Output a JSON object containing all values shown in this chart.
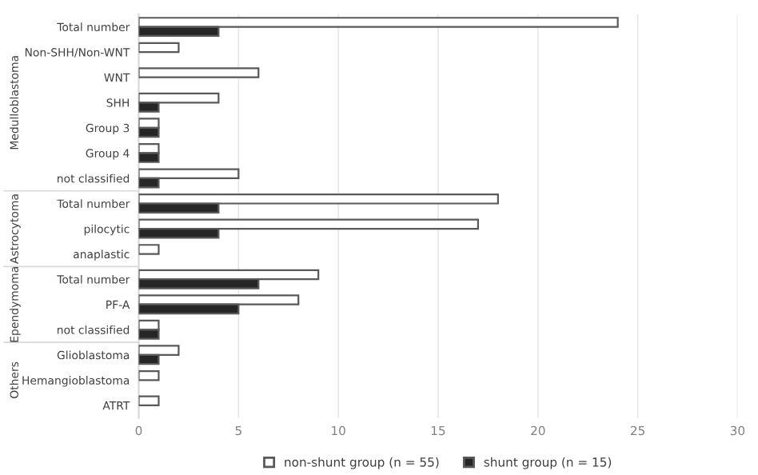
{
  "chart_data": {
    "type": "bar",
    "orientation": "horizontal",
    "categories": [
      "Total number",
      "Non-SHH/Non-WNT",
      "WNT",
      "SHH",
      "Group 3",
      "Group 4",
      "not classified",
      "Total number",
      "pilocytic",
      "anaplastic",
      "Total number",
      "PF-A",
      "not classified",
      "Glioblastoma",
      "Hemangioblastoma",
      "ATRT"
    ],
    "series": [
      {
        "name": "non-shunt group (n = 55)",
        "color": "#ffffff",
        "values": [
          24,
          2,
          6,
          4,
          1,
          1,
          5,
          18,
          17,
          1,
          9,
          8,
          1,
          2,
          1,
          1
        ]
      },
      {
        "name": "shunt group (n = 15)",
        "color": "#262626",
        "values": [
          4,
          null,
          null,
          1,
          1,
          1,
          1,
          4,
          4,
          null,
          6,
          5,
          1,
          1,
          null,
          null
        ]
      }
    ],
    "xlim": [
      0,
      30
    ],
    "xticks": [
      0,
      5,
      10,
      15,
      20,
      25,
      30
    ],
    "grid": "x",
    "legend": "bottom",
    "annotations": [
      "Medulloblastoma",
      "Astrocytoma",
      "Ependymoma",
      "Others"
    ]
  }
}
